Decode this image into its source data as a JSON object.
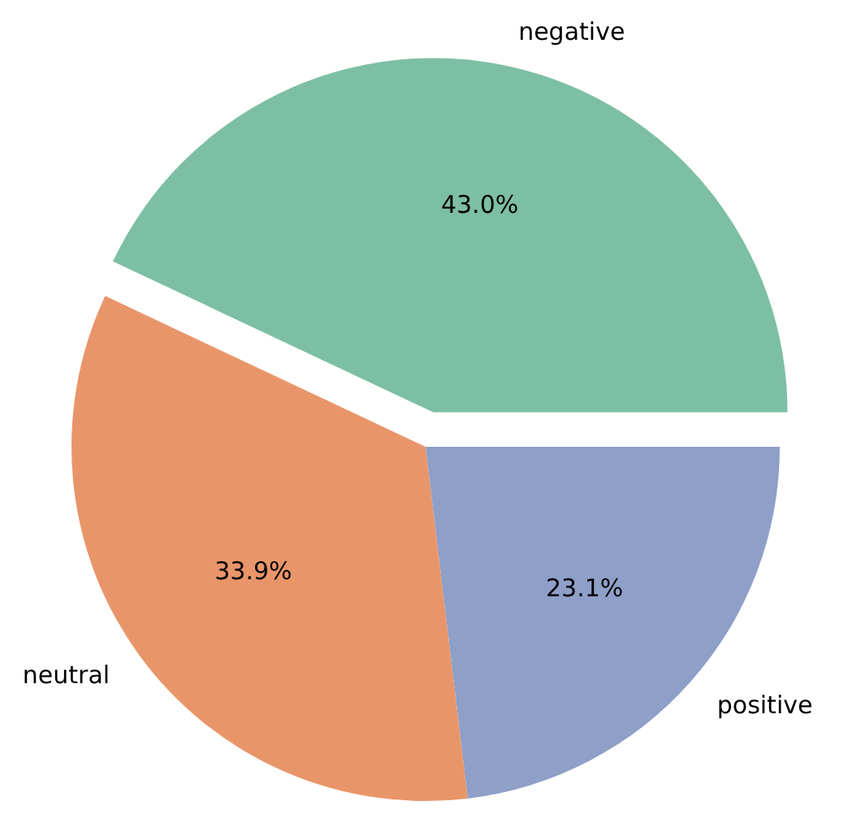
{
  "chart_data": {
    "type": "pie",
    "categories": [
      "negative",
      "neutral",
      "positive"
    ],
    "values": [
      43.0,
      33.9,
      23.1
    ],
    "colors": [
      "#7dbfa4",
      "#e9956a",
      "#8e9fc8"
    ],
    "value_labels": [
      "43.0%",
      "33.9%",
      "23.1%"
    ]
  }
}
